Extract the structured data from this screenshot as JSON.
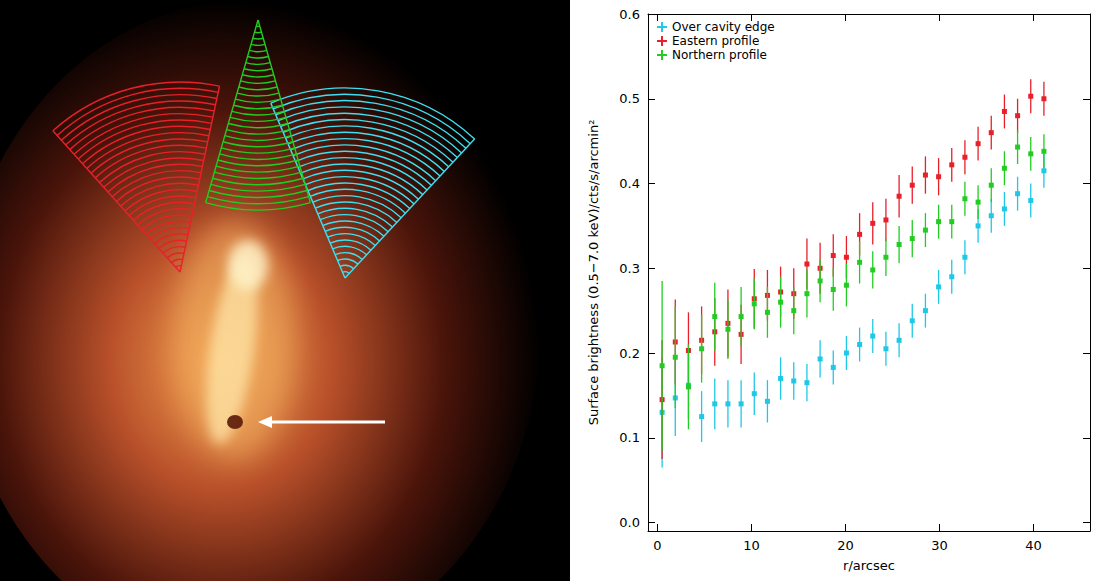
{
  "chart_data": {
    "type": "scatter",
    "x_label": "r/arcsec",
    "y_label": "Surface brightness (0.5−7.0 keV)/cts/s/arcmin²",
    "xlim": [
      -1,
      46
    ],
    "xticks": [
      0,
      10,
      20,
      30,
      40
    ],
    "ylim": [
      -0.01,
      0.6
    ],
    "yticks": [
      {
        "value": 0,
        "label": "0.0"
      },
      0.1,
      0.2,
      0.3,
      0.4,
      0.5,
      0.6
    ],
    "legend": "top left",
    "marker": "square",
    "x": [
      0.5,
      1.9,
      3.3,
      4.7,
      6.1,
      7.5,
      8.9,
      10.3,
      11.7,
      13.1,
      14.5,
      15.9,
      17.3,
      18.7,
      20.1,
      21.5,
      22.9,
      24.3,
      25.7,
      27.1,
      28.5,
      29.9,
      31.3,
      32.7,
      34.1,
      35.5,
      36.9,
      38.3,
      39.7,
      41.1
    ],
    "series": [
      {
        "name": "Over cavity edge",
        "color": "#1ec8e6",
        "values": [
          0.13,
          0.147,
          0.162,
          0.125,
          0.14,
          0.14,
          0.14,
          0.152,
          0.143,
          0.17,
          0.167,
          0.165,
          0.193,
          0.183,
          0.2,
          0.21,
          0.22,
          0.205,
          0.215,
          0.238,
          0.25,
          0.278,
          0.29,
          0.313,
          0.35,
          0.362,
          0.37,
          0.388,
          0.38,
          0.415
        ],
        "errors": [
          0.065,
          0.045,
          0.04,
          0.03,
          0.03,
          0.028,
          0.028,
          0.025,
          0.025,
          0.025,
          0.022,
          0.022,
          0.022,
          0.02,
          0.02,
          0.02,
          0.02,
          0.02,
          0.02,
          0.02,
          0.02,
          0.02,
          0.02,
          0.02,
          0.02,
          0.02,
          0.02,
          0.02,
          0.02,
          0.02
        ]
      },
      {
        "name": "Eastern profile",
        "color": "#e8202a",
        "values": [
          0.145,
          0.213,
          0.203,
          0.215,
          0.225,
          0.235,
          0.222,
          0.264,
          0.268,
          0.272,
          0.27,
          0.305,
          0.3,
          0.315,
          0.313,
          0.34,
          0.353,
          0.357,
          0.385,
          0.398,
          0.41,
          0.408,
          0.422,
          0.431,
          0.447,
          0.46,
          0.485,
          0.48,
          0.503,
          0.5
        ],
        "errors": [
          0.07,
          0.05,
          0.045,
          0.04,
          0.04,
          0.04,
          0.035,
          0.035,
          0.03,
          0.03,
          0.03,
          0.03,
          0.03,
          0.025,
          0.025,
          0.025,
          0.025,
          0.025,
          0.025,
          0.022,
          0.022,
          0.022,
          0.02,
          0.02,
          0.02,
          0.02,
          0.02,
          0.02,
          0.02,
          0.02
        ]
      },
      {
        "name": "Northern profile",
        "color": "#22cc22",
        "values": [
          0.185,
          0.195,
          0.16,
          0.205,
          0.243,
          0.228,
          0.243,
          0.258,
          0.248,
          0.26,
          0.25,
          0.27,
          0.285,
          0.275,
          0.28,
          0.307,
          0.298,
          0.313,
          0.328,
          0.335,
          0.345,
          0.355,
          0.355,
          0.382,
          0.378,
          0.398,
          0.418,
          0.443,
          0.435,
          0.438
        ],
        "errors": [
          0.1,
          0.06,
          0.05,
          0.04,
          0.04,
          0.035,
          0.035,
          0.03,
          0.03,
          0.03,
          0.028,
          0.028,
          0.025,
          0.025,
          0.025,
          0.025,
          0.022,
          0.022,
          0.022,
          0.022,
          0.02,
          0.02,
          0.02,
          0.02,
          0.02,
          0.02,
          0.02,
          0.02,
          0.02,
          0.02
        ]
      }
    ]
  }
}
